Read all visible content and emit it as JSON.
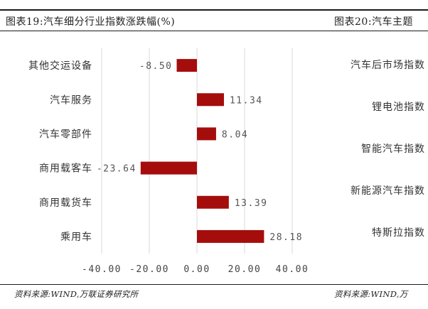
{
  "left_panel": {
    "title": "图表19:汽车细分行业指数涨跌幅(%)",
    "source": "资料来源:WIND,万联证券研究所"
  },
  "right_panel": {
    "title": "图表20:汽车主题",
    "source": "资料来源:WIND,万",
    "categories": [
      "汽车后市场指数",
      "锂电池指数",
      "智能汽车指数",
      "新能源汽车指数",
      "特斯拉指数"
    ]
  },
  "chart_data": {
    "type": "bar",
    "orientation": "horizontal",
    "categories": [
      "其他交运设备",
      "汽车服务",
      "汽车零部件",
      "商用载客车",
      "商用载货车",
      "乘用车"
    ],
    "values": [
      -8.5,
      11.34,
      8.04,
      -23.64,
      13.39,
      28.18
    ],
    "value_labels": [
      "-8.50",
      "11.34",
      "8.04",
      "-23.64",
      "13.39",
      "28.18"
    ],
    "xlim": [
      -40,
      40
    ],
    "xticks": [
      -40,
      -20,
      0,
      20,
      40
    ],
    "xtick_labels": [
      "-40.00",
      "-20.00",
      "0.00",
      "20.00",
      "40.00"
    ],
    "title": "",
    "xlabel": "",
    "ylabel": "",
    "bar_color": "#A50D0D",
    "grid": "vertical"
  }
}
